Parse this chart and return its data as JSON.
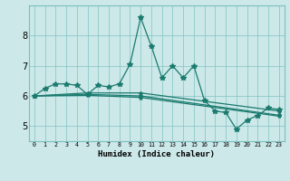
{
  "xlabel": "Humidex (Indice chaleur)",
  "ylabel": "",
  "xlim": [
    -0.5,
    23.5
  ],
  "ylim": [
    4.5,
    9.0
  ],
  "yticks": [
    5,
    6,
    7,
    8
  ],
  "xticks": [
    0,
    1,
    2,
    3,
    4,
    5,
    6,
    7,
    8,
    9,
    10,
    11,
    12,
    13,
    14,
    15,
    16,
    17,
    18,
    19,
    20,
    21,
    22,
    23
  ],
  "bg_color": "#cce8e8",
  "line_color": "#1a7a6e",
  "series": [
    {
      "x": [
        0,
        1,
        2,
        3,
        4,
        5,
        6,
        7,
        8,
        9,
        10,
        11,
        12,
        13,
        14,
        15,
        16,
        17,
        18,
        19,
        20,
        21,
        22,
        23
      ],
      "y": [
        6.0,
        6.25,
        6.4,
        6.4,
        6.35,
        6.05,
        6.35,
        6.3,
        6.4,
        7.05,
        8.6,
        7.65,
        6.6,
        7.0,
        6.6,
        7.0,
        5.85,
        5.5,
        5.45,
        4.9,
        5.2,
        5.35,
        5.6,
        5.55
      ]
    },
    {
      "x": [
        0,
        5,
        10,
        23
      ],
      "y": [
        6.0,
        6.1,
        6.1,
        5.5
      ]
    },
    {
      "x": [
        0,
        5,
        10,
        23
      ],
      "y": [
        6.0,
        6.05,
        6.0,
        5.36
      ]
    },
    {
      "x": [
        0,
        5,
        10,
        23
      ],
      "y": [
        6.0,
        6.02,
        5.95,
        5.33
      ]
    }
  ]
}
